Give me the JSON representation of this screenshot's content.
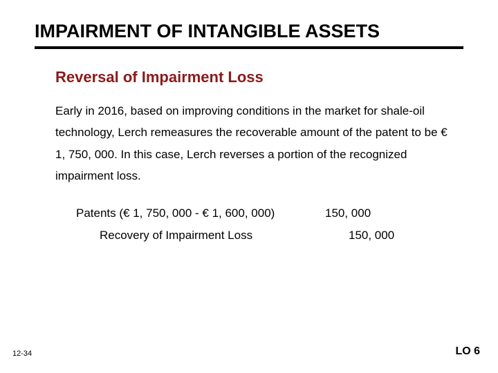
{
  "title": "IMPAIRMENT OF INTANGIBLE ASSETS",
  "subtitle": {
    "text": "Reversal of Impairment Loss",
    "color": "#8b1a1a"
  },
  "body": "Early in 2016, based on improving conditions in the market for shale-oil technology, Lerch remeasures the recoverable amount of the patent to be € 1, 750, 000. In this case, Lerch reverses a portion of the recognized impairment loss.",
  "body_fontsize": 17,
  "journal": {
    "rows": [
      {
        "label": "Patents  (€ 1, 750, 000 - € 1, 600, 000)",
        "amount": "150, 000",
        "indent_label": false,
        "indent_amount": false
      },
      {
        "label": "Recovery of Impairment Loss",
        "amount": "150, 000",
        "indent_label": true,
        "indent_amount": true
      }
    ]
  },
  "page_number": "12-34",
  "learning_objective": "LO 6",
  "colors": {
    "title": "#000000",
    "rule": "#000000",
    "body": "#000000",
    "background": "#ffffff"
  }
}
